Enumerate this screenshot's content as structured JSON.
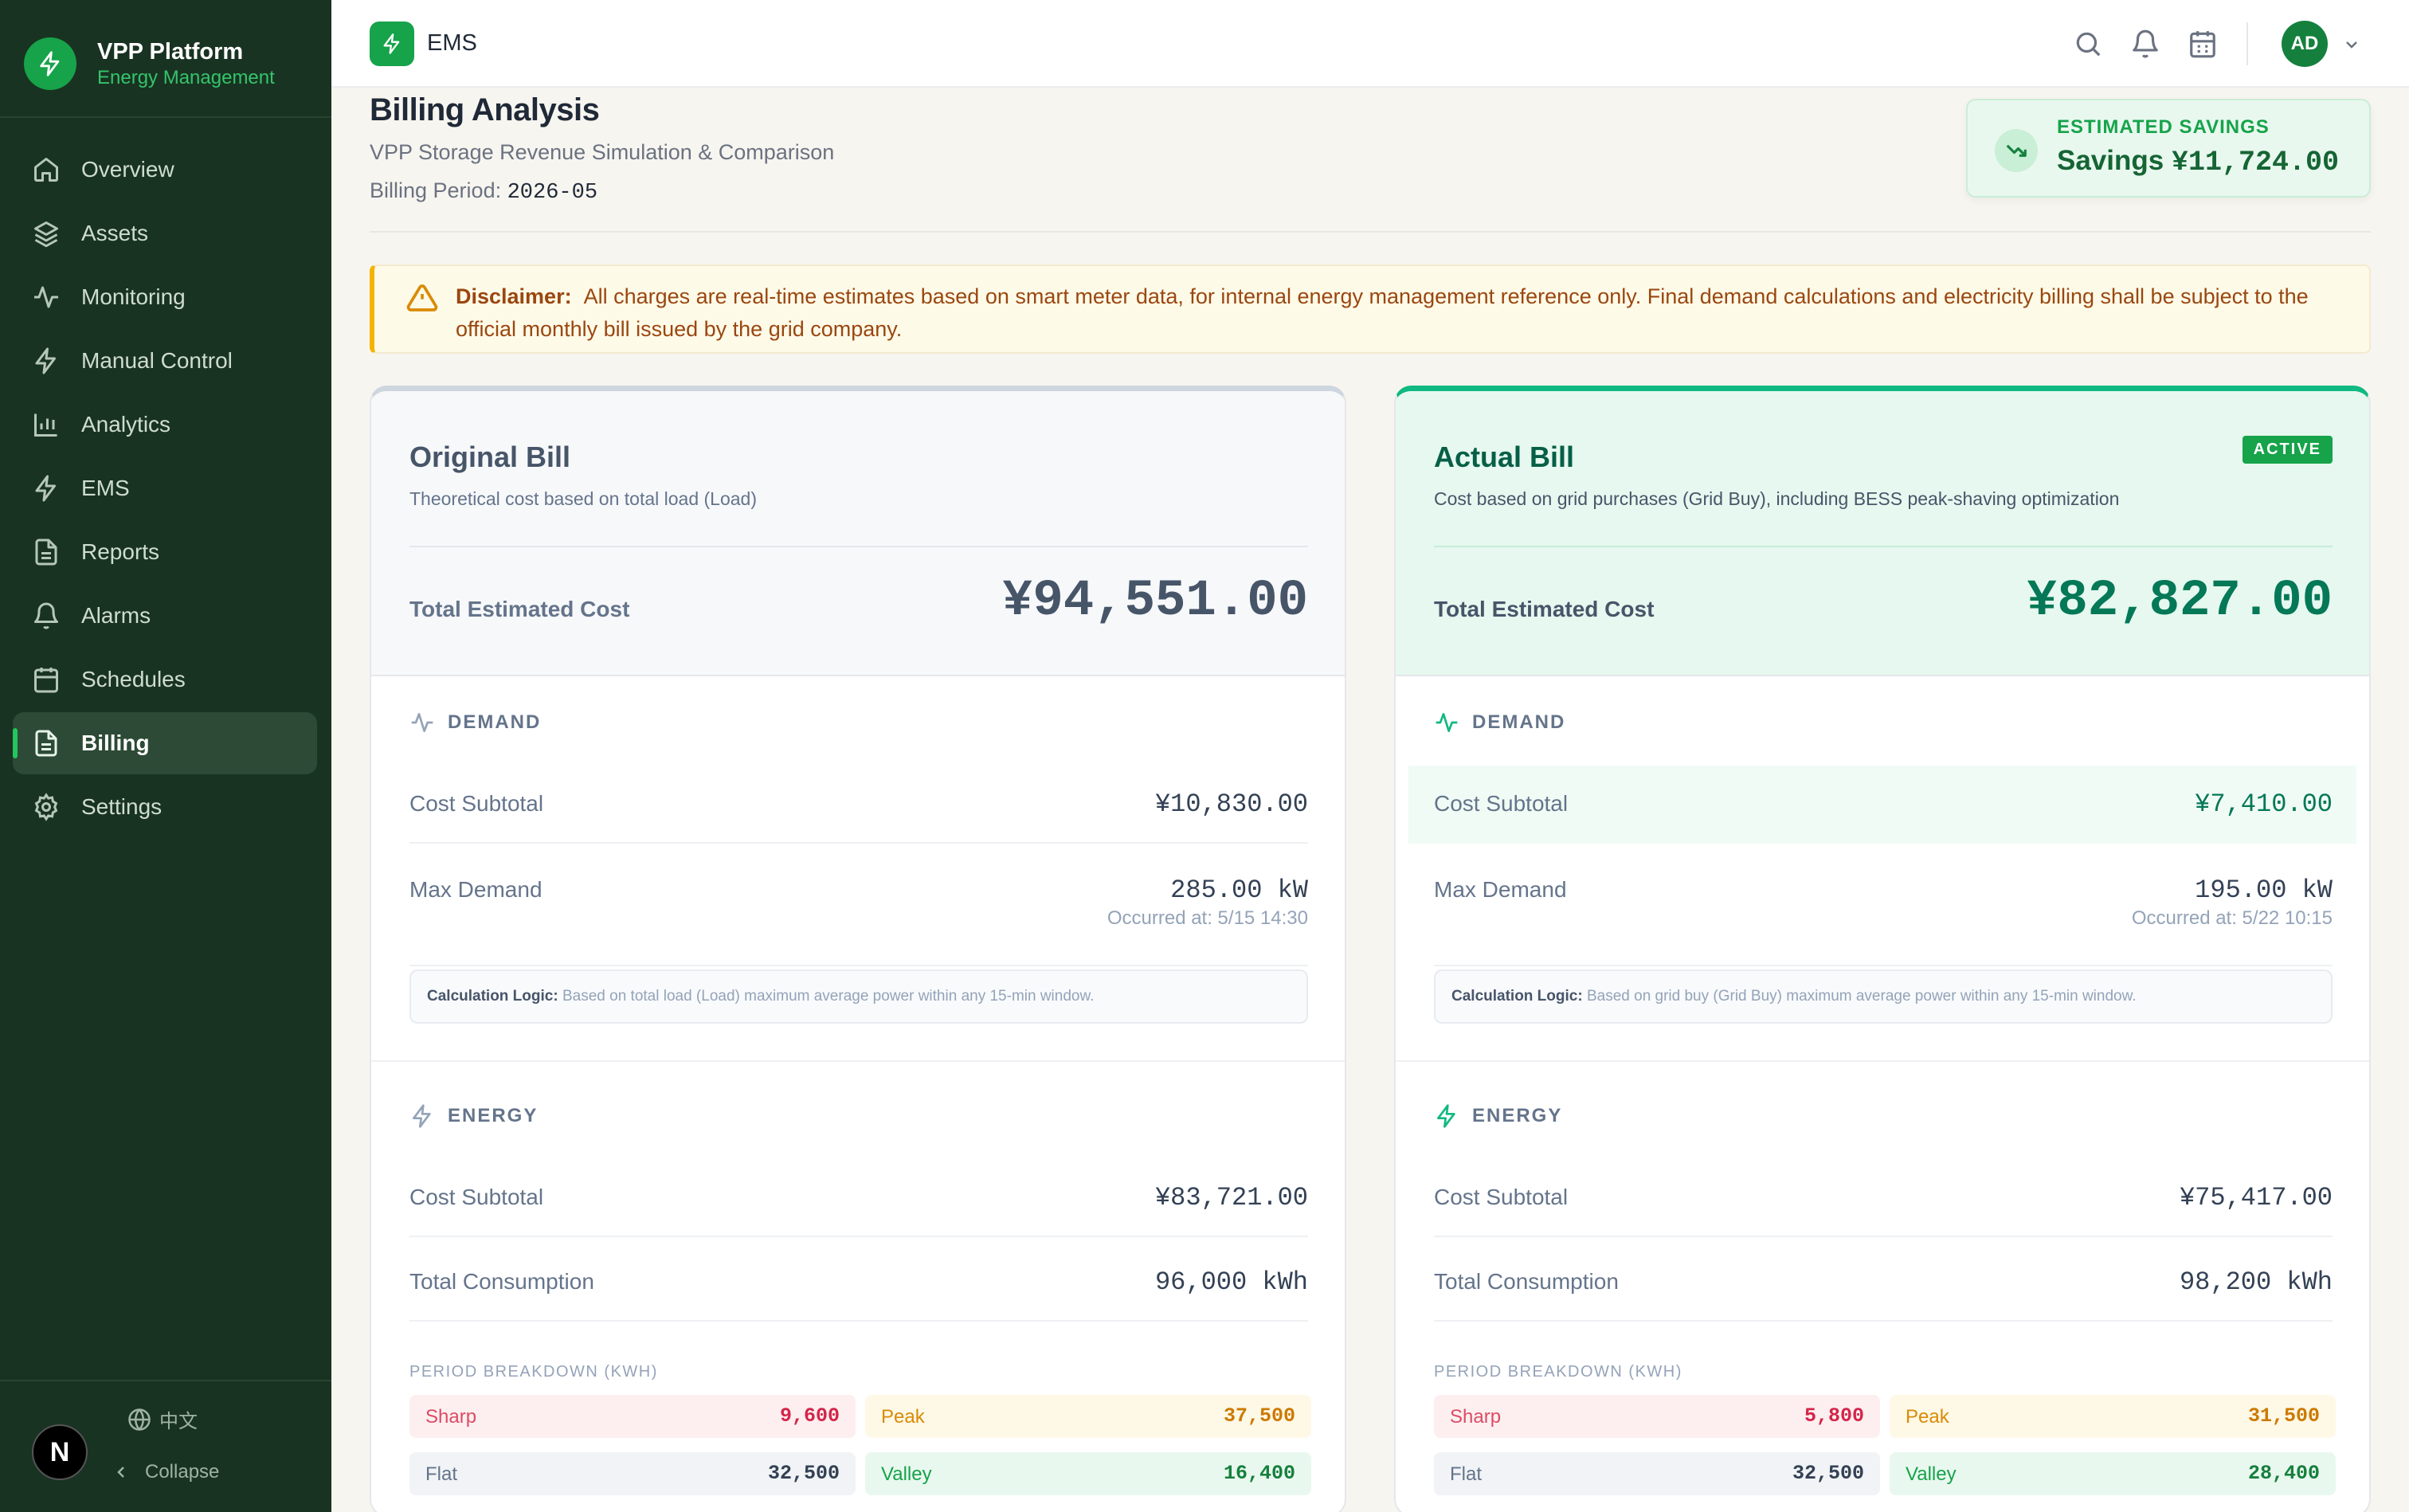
{
  "brand": {
    "title": "VPP Platform",
    "subtitle": "Energy Management"
  },
  "nav": [
    {
      "label": "Overview",
      "icon": "home-icon"
    },
    {
      "label": "Assets",
      "icon": "layers-icon"
    },
    {
      "label": "Monitoring",
      "icon": "activity-icon"
    },
    {
      "label": "Manual Control",
      "icon": "bolt-icon"
    },
    {
      "label": "Analytics",
      "icon": "bar-chart-icon"
    },
    {
      "label": "EMS",
      "icon": "bolt-icon"
    },
    {
      "label": "Reports",
      "icon": "document-icon"
    },
    {
      "label": "Alarms",
      "icon": "bell-icon"
    },
    {
      "label": "Schedules",
      "icon": "calendar-icon"
    },
    {
      "label": "Billing",
      "icon": "document-icon",
      "active": true
    },
    {
      "label": "Settings",
      "icon": "gear-icon"
    }
  ],
  "sidebar_footer": {
    "language": "中文",
    "collapse": "Collapse",
    "badge": "N"
  },
  "topbar": {
    "title": "EMS",
    "avatar": "AD"
  },
  "header": {
    "title": "Billing Analysis",
    "subtitle": "VPP Storage Revenue Simulation & Comparison",
    "period_label": "Billing Period:",
    "period_value": "2026-05"
  },
  "savings": {
    "label": "ESTIMATED SAVINGS",
    "value_prefix": "Savings",
    "value": "¥11,724.00"
  },
  "disclaimer": {
    "label": "Disclaimer:",
    "text": "All charges are real-time estimates based on smart meter data, for internal energy management reference only. Final demand calculations and electricity billing shall be subject to the official monthly bill issued by the grid company."
  },
  "labels": {
    "total": "Total Estimated Cost",
    "demand": "DEMAND",
    "energy": "ENERGY",
    "cost_subtotal": "Cost Subtotal",
    "max_demand": "Max Demand",
    "total_consumption": "Total Consumption",
    "period_breakdown": "PERIOD BREAKDOWN (KWH)",
    "logic_label": "Calculation Logic:",
    "sharp": "Sharp",
    "peak": "Peak",
    "flat": "Flat",
    "valley": "Valley"
  },
  "original": {
    "title": "Original Bill",
    "desc": "Theoretical cost based on total load (Load)",
    "total": "¥94,551.00",
    "demand_subtotal": "¥10,830.00",
    "max_demand": "285.00 kW",
    "occurred": "Occurred at: 5/15 14:30",
    "logic": "Based on total load (Load) maximum average power within any 15-min window.",
    "energy_subtotal": "¥83,721.00",
    "consumption": "96,000 kWh",
    "sharp": "9,600",
    "peak": "37,500",
    "flat": "32,500",
    "valley": "16,400"
  },
  "actual": {
    "title": "Actual Bill",
    "badge": "ACTIVE",
    "desc": "Cost based on grid purchases (Grid Buy), including BESS peak-shaving optimization",
    "total": "¥82,827.00",
    "demand_subtotal": "¥7,410.00",
    "max_demand": "195.00 kW",
    "occurred": "Occurred at: 5/22 10:15",
    "logic": "Based on grid buy (Grid Buy) maximum average power within any 15-min window.",
    "energy_subtotal": "¥75,417.00",
    "consumption": "98,200 kWh",
    "sharp": "5,800",
    "peak": "31,500",
    "flat": "32,500",
    "valley": "28,400"
  },
  "colors": {
    "brand": "#16a34a",
    "sidebar": "#193322",
    "savings": "#166534"
  }
}
